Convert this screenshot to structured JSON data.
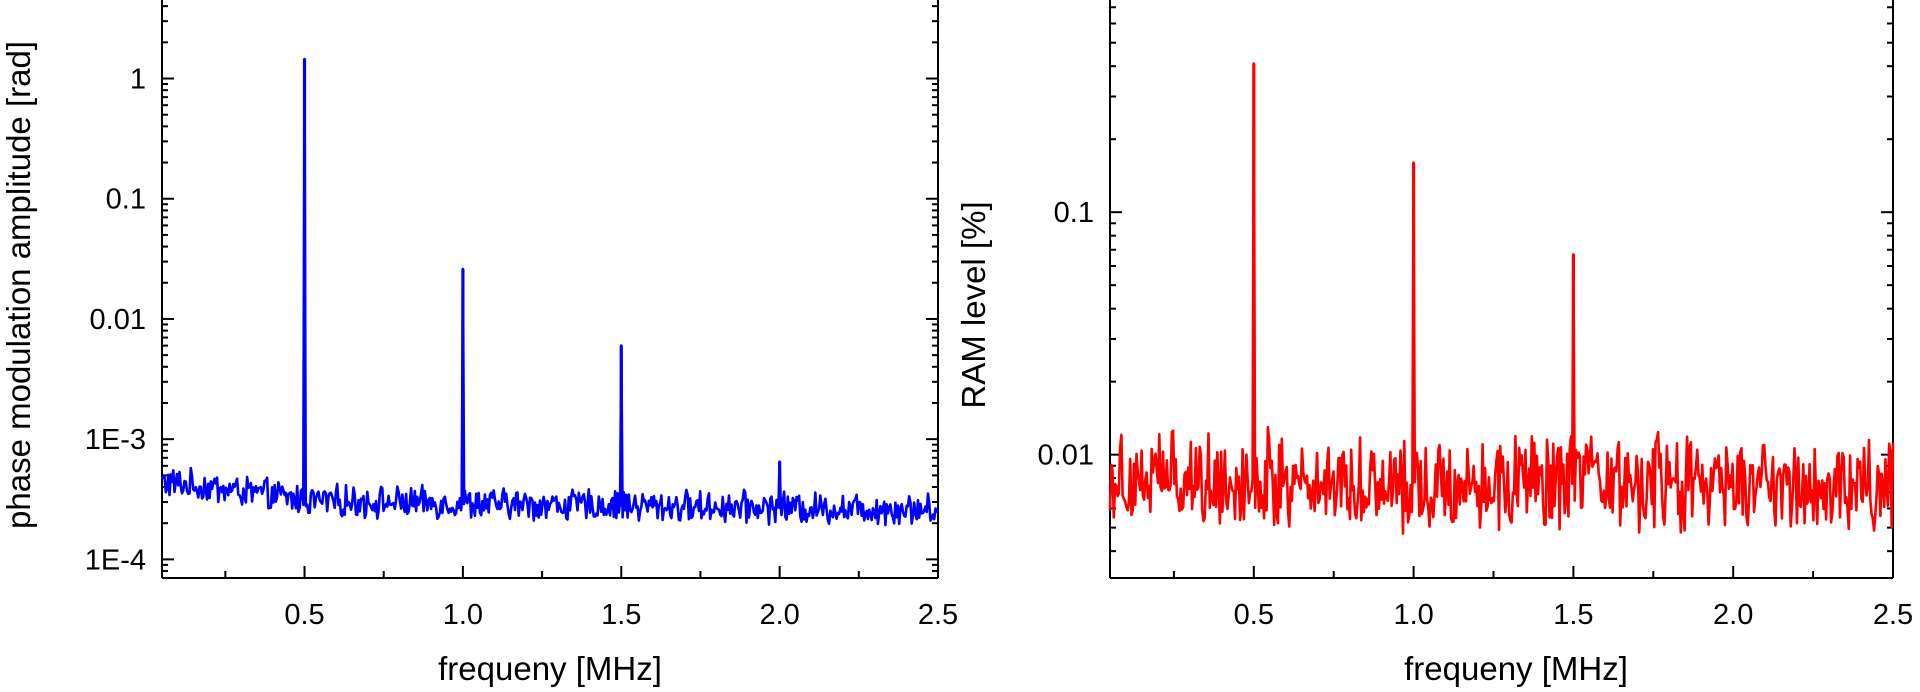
{
  "chart_data": [
    {
      "type": "line",
      "xlabel": "frequeny [MHz]",
      "ylabel": "phase modulation amplitude [rad]",
      "xscale": "linear",
      "yscale": "log",
      "xlim": [
        0.05,
        2.5
      ],
      "ylim": [
        7e-05,
        4.5
      ],
      "x_ticks": [
        0.5,
        1.0,
        1.5,
        2.0,
        2.5
      ],
      "x_tick_labels": [
        "0.5",
        "1.0",
        "1.5",
        "2.0",
        "2.5"
      ],
      "y_ticks": [
        0.0001,
        0.001,
        0.01,
        0.1,
        1
      ],
      "y_tick_labels": [
        "1E-4",
        "1E-3",
        "0.01",
        "0.1",
        "1"
      ],
      "line_color": "#0000ff",
      "noise_floor": {
        "x": [
          0.05,
          0.5,
          1.0,
          1.5,
          2.0,
          2.5
        ],
        "y": [
          0.00044,
          0.00031,
          0.00029,
          0.00028,
          0.00027,
          0.00026
        ]
      },
      "peaks": [
        {
          "x": 0.5,
          "y": 1.45
        },
        {
          "x": 1.0,
          "y": 0.026
        },
        {
          "x": 1.5,
          "y": 0.006
        },
        {
          "x": 2.0,
          "y": 0.00065
        }
      ]
    },
    {
      "type": "line",
      "xlabel": "frequeny [MHz]",
      "ylabel": "RAM level [%]",
      "xscale": "linear",
      "yscale": "log",
      "xlim": [
        0.05,
        2.5
      ],
      "ylim": [
        0.0031,
        0.75
      ],
      "x_ticks": [
        0.5,
        1.0,
        1.5,
        2.0,
        2.5
      ],
      "x_tick_labels": [
        "0.5",
        "1.0",
        "1.5",
        "2.0",
        "2.5"
      ],
      "y_ticks": [
        0.01,
        0.1
      ],
      "y_tick_labels": [
        "0.01",
        "0.1"
      ],
      "line_color": "#ff0000",
      "noise_floor": {
        "x": [
          0.05,
          0.5,
          1.0,
          1.5,
          2.0,
          2.5
        ],
        "y": [
          0.0082,
          0.0079,
          0.0077,
          0.0076,
          0.0075,
          0.0073
        ]
      },
      "peaks": [
        {
          "x": 0.5,
          "y": 0.41
        },
        {
          "x": 1.0,
          "y": 0.16
        },
        {
          "x": 1.5,
          "y": 0.067
        }
      ]
    }
  ]
}
